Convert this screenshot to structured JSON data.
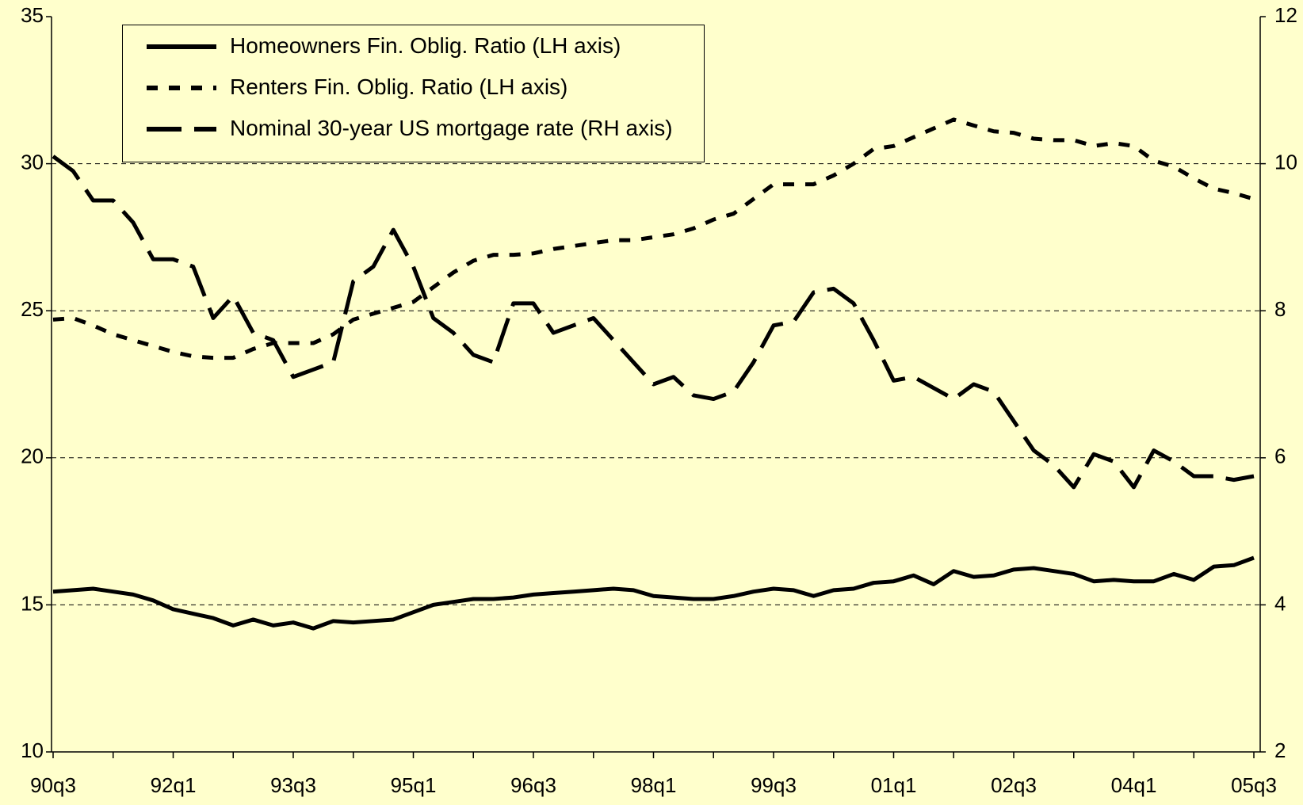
{
  "chart_data": {
    "type": "line",
    "categories": [
      "90q3",
      null,
      null,
      null,
      null,
      null,
      "92q1",
      null,
      null,
      null,
      null,
      null,
      "93q3",
      null,
      null,
      null,
      null,
      null,
      "95q1",
      null,
      null,
      null,
      null,
      null,
      "96q3",
      null,
      null,
      null,
      null,
      null,
      "98q1",
      null,
      null,
      null,
      null,
      null,
      "99q3",
      null,
      null,
      null,
      null,
      null,
      "01q1",
      null,
      null,
      null,
      null,
      null,
      "02q3",
      null,
      null,
      null,
      null,
      null,
      "04q1",
      null,
      null,
      null,
      null,
      null,
      "05q3"
    ],
    "series": [
      {
        "name": "Homeowners Fin. Oblig. Ratio (LH axis)",
        "color": "#000000",
        "dash": "solid",
        "values": [
          15.45,
          15.5,
          15.55,
          15.45,
          15.35,
          15.15,
          14.85,
          14.7,
          14.55,
          14.3,
          14.5,
          14.3,
          14.4,
          14.2,
          14.45,
          14.4,
          14.45,
          14.5,
          14.75,
          15.0,
          15.1,
          15.2,
          15.2,
          15.25,
          15.35,
          15.4,
          15.45,
          15.5,
          15.55,
          15.5,
          15.3,
          15.25,
          15.2,
          15.2,
          15.3,
          15.45,
          15.55,
          15.5,
          15.3,
          15.5,
          15.55,
          15.75,
          15.8,
          16.0,
          15.7,
          16.15,
          15.95,
          16.0,
          16.2,
          16.25,
          16.15,
          16.05,
          15.8,
          15.85,
          15.8,
          15.8,
          16.05,
          15.85,
          16.3,
          16.35,
          16.6
        ]
      },
      {
        "name": "Renters Fin. Oblig. Ratio (LH axis)",
        "color": "#000000",
        "dash": "short",
        "values": [
          24.7,
          24.75,
          24.5,
          24.2,
          24.0,
          23.8,
          23.6,
          23.45,
          23.4,
          23.4,
          23.7,
          23.9,
          23.9,
          23.9,
          24.2,
          24.7,
          24.9,
          25.1,
          25.3,
          25.8,
          26.3,
          26.7,
          26.9,
          26.9,
          26.95,
          27.1,
          27.2,
          27.3,
          27.4,
          27.4,
          27.5,
          27.6,
          27.8,
          28.1,
          28.3,
          28.8,
          29.3,
          29.3,
          29.3,
          29.6,
          30.0,
          30.5,
          30.6,
          30.9,
          31.2,
          31.5,
          31.3,
          31.1,
          31.05,
          30.85,
          30.8,
          30.8,
          30.6,
          30.7,
          30.6,
          30.1,
          29.9,
          29.5,
          29.15,
          29.0,
          28.8
        ]
      },
      {
        "name": "Nominal 30-year US mortgage rate (RH axis)",
        "color": "#000000",
        "dash": "long",
        "axis": "y2",
        "values": [
          10.1,
          9.9,
          9.5,
          9.5,
          9.2,
          8.7,
          8.7,
          8.6,
          7.9,
          8.2,
          7.7,
          7.6,
          7.1,
          7.2,
          7.3,
          8.4,
          8.6,
          9.1,
          8.6,
          7.9,
          7.7,
          7.4,
          7.3,
          8.1,
          8.1,
          7.7,
          7.8,
          7.9,
          7.6,
          7.3,
          7.0,
          7.1,
          6.85,
          6.8,
          6.9,
          7.3,
          7.8,
          7.85,
          8.25,
          8.3,
          8.1,
          7.6,
          7.05,
          7.1,
          6.95,
          6.8,
          7.0,
          6.9,
          6.5,
          6.1,
          5.9,
          5.6,
          6.05,
          5.95,
          5.6,
          6.1,
          5.95,
          5.75,
          5.75,
          5.7,
          5.75
        ]
      }
    ],
    "ylim": [
      10,
      35
    ],
    "yticks": [
      10,
      15,
      20,
      25,
      30,
      35
    ],
    "y2lim": [
      2,
      12
    ],
    "y2ticks": [
      2,
      4,
      6,
      8,
      10,
      12
    ],
    "grid": true,
    "legend": "upper left",
    "background": "#ffffcc"
  }
}
